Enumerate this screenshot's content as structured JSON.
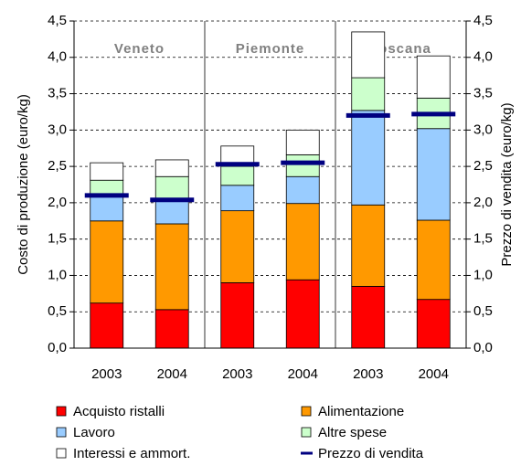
{
  "chart_data": {
    "type": "bar",
    "stacked": true,
    "categories": [
      "2003",
      "2004",
      "2003",
      "2004",
      "2003",
      "2004"
    ],
    "category_groups": [
      "Veneto",
      "Veneto",
      "Piemonte",
      "Piemonte",
      "Toscana",
      "Toscana"
    ],
    "y_label": "Costo di produzione (euro/kg)",
    "y2_label": "Prezzo di vendita (euro/kg)",
    "ylim": [
      0,
      4.5
    ],
    "yticks": [
      {
        "value": 0,
        "label": "0,0"
      },
      {
        "value": 0.5,
        "label": "0,5"
      },
      {
        "value": 1,
        "label": "1,0"
      },
      {
        "value": 1.5,
        "label": "1,5"
      },
      {
        "value": 2,
        "label": "2,0"
      },
      {
        "value": 2.5,
        "label": "2,5"
      },
      {
        "value": 3,
        "label": "3,0"
      },
      {
        "value": 3.5,
        "label": "3,5"
      },
      {
        "value": 4,
        "label": "4,0"
      },
      {
        "value": 4.5,
        "label": "4,5"
      }
    ],
    "y2lim": [
      0,
      4.5
    ],
    "y2ticks": [
      {
        "value": 0,
        "label": "0,0"
      },
      {
        "value": 0.5,
        "label": "0,5"
      },
      {
        "value": 1,
        "label": "1,0"
      },
      {
        "value": 1.5,
        "label": "1,5"
      },
      {
        "value": 2,
        "label": "2,0"
      },
      {
        "value": 2.5,
        "label": "2,5"
      },
      {
        "value": 3,
        "label": "3,0"
      },
      {
        "value": 3.5,
        "label": "3,5"
      },
      {
        "value": 4,
        "label": "4,0"
      },
      {
        "value": 4.5,
        "label": "4,5"
      }
    ],
    "grid": true,
    "series": [
      {
        "name": "Acquisto ristalli",
        "color": "#ff0000",
        "values": [
          0.62,
          0.53,
          0.9,
          0.94,
          0.85,
          0.67
        ]
      },
      {
        "name": "Alimentazione",
        "color": "#ff9900",
        "values": [
          1.13,
          1.18,
          0.99,
          1.05,
          1.12,
          1.09
        ]
      },
      {
        "name": "Lavoro",
        "color": "#99ccff",
        "values": [
          0.33,
          0.34,
          0.35,
          0.37,
          1.3,
          1.26
        ]
      },
      {
        "name": "Altre spese",
        "color": "#ccffcc",
        "values": [
          0.23,
          0.31,
          0.26,
          0.3,
          0.45,
          0.42
        ]
      },
      {
        "name": "Interessi e ammort.",
        "color": "#ffffff",
        "values": [
          0.24,
          0.23,
          0.28,
          0.34,
          0.63,
          0.58
        ]
      },
      {
        "name": "Prezzo di vendita",
        "color": "#000080",
        "type": "marker",
        "axis": "y2",
        "values": [
          2.1,
          2.04,
          2.53,
          2.55,
          3.2,
          3.22
        ]
      }
    ]
  }
}
